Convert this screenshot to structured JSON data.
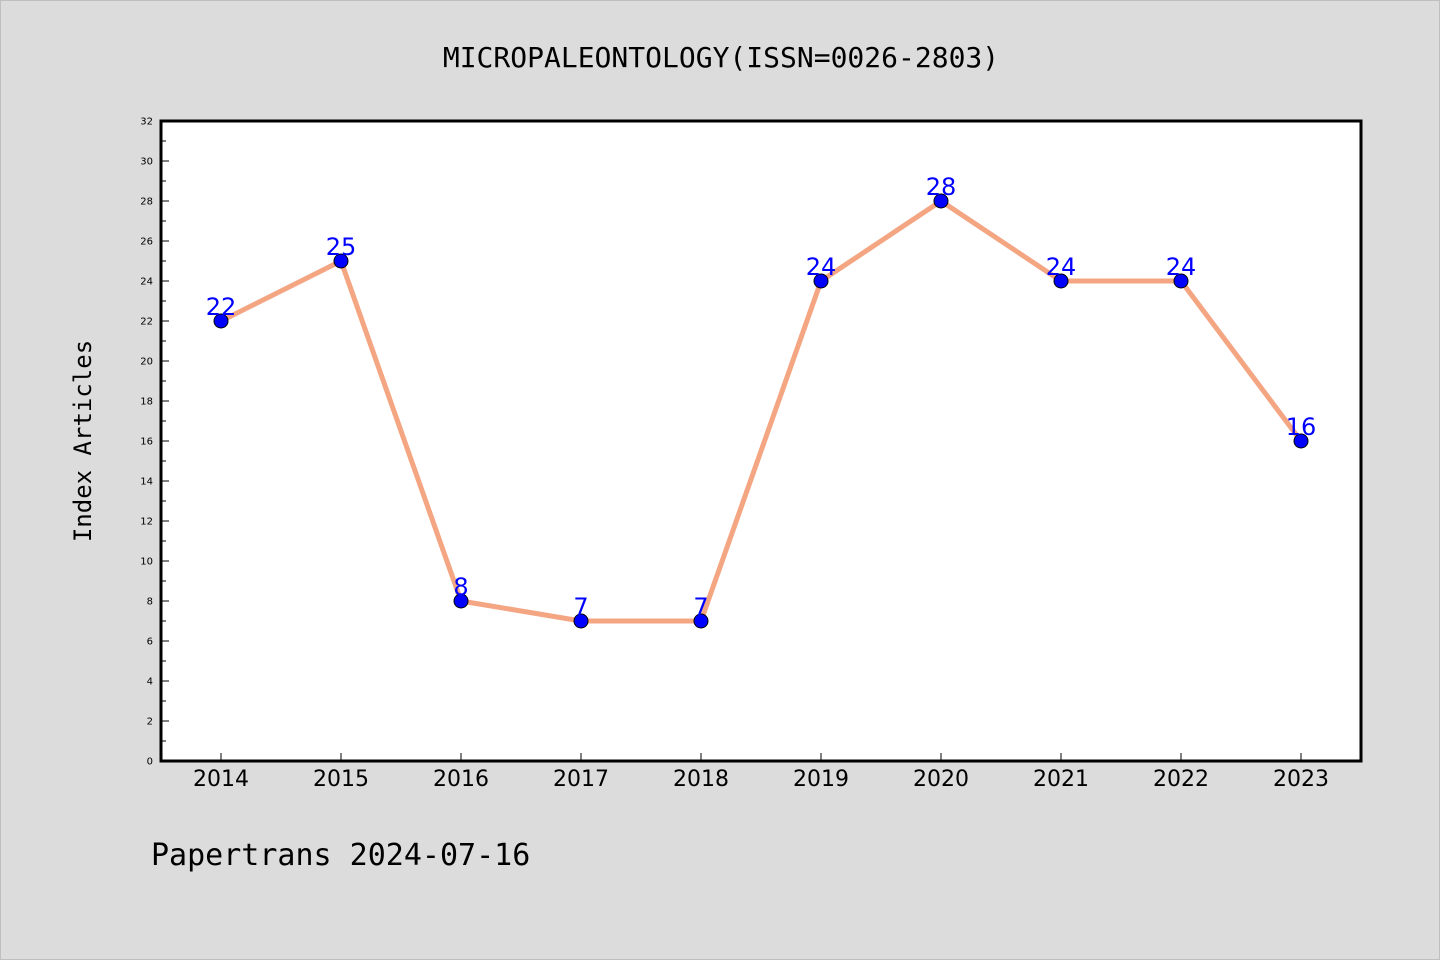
{
  "chart_data": {
    "type": "line",
    "title": "MICROPALEONTOLOGY(ISSN=0026-2803)",
    "xlabel": "",
    "ylabel": "Index Articles",
    "categories": [
      "2014",
      "2015",
      "2016",
      "2017",
      "2018",
      "2019",
      "2020",
      "2021",
      "2022",
      "2023"
    ],
    "series": [
      {
        "values": [
          22,
          25,
          8,
          7,
          7,
          24,
          28,
          24,
          24,
          16
        ],
        "line_color": "#f4a582",
        "marker_color": "#0000ff",
        "label_color": "#0000ff"
      }
    ],
    "ylim": [
      0,
      32
    ],
    "yticks": [
      0,
      2,
      4,
      6,
      8,
      10,
      12,
      14,
      16,
      18,
      20,
      22,
      24,
      26,
      28,
      30,
      32
    ],
    "grid": false,
    "legend": "none",
    "background_color": "#dcdcdc",
    "plot_background_color": "#ffffff"
  },
  "footer": {
    "text": "Papertrans 2024-07-16"
  }
}
